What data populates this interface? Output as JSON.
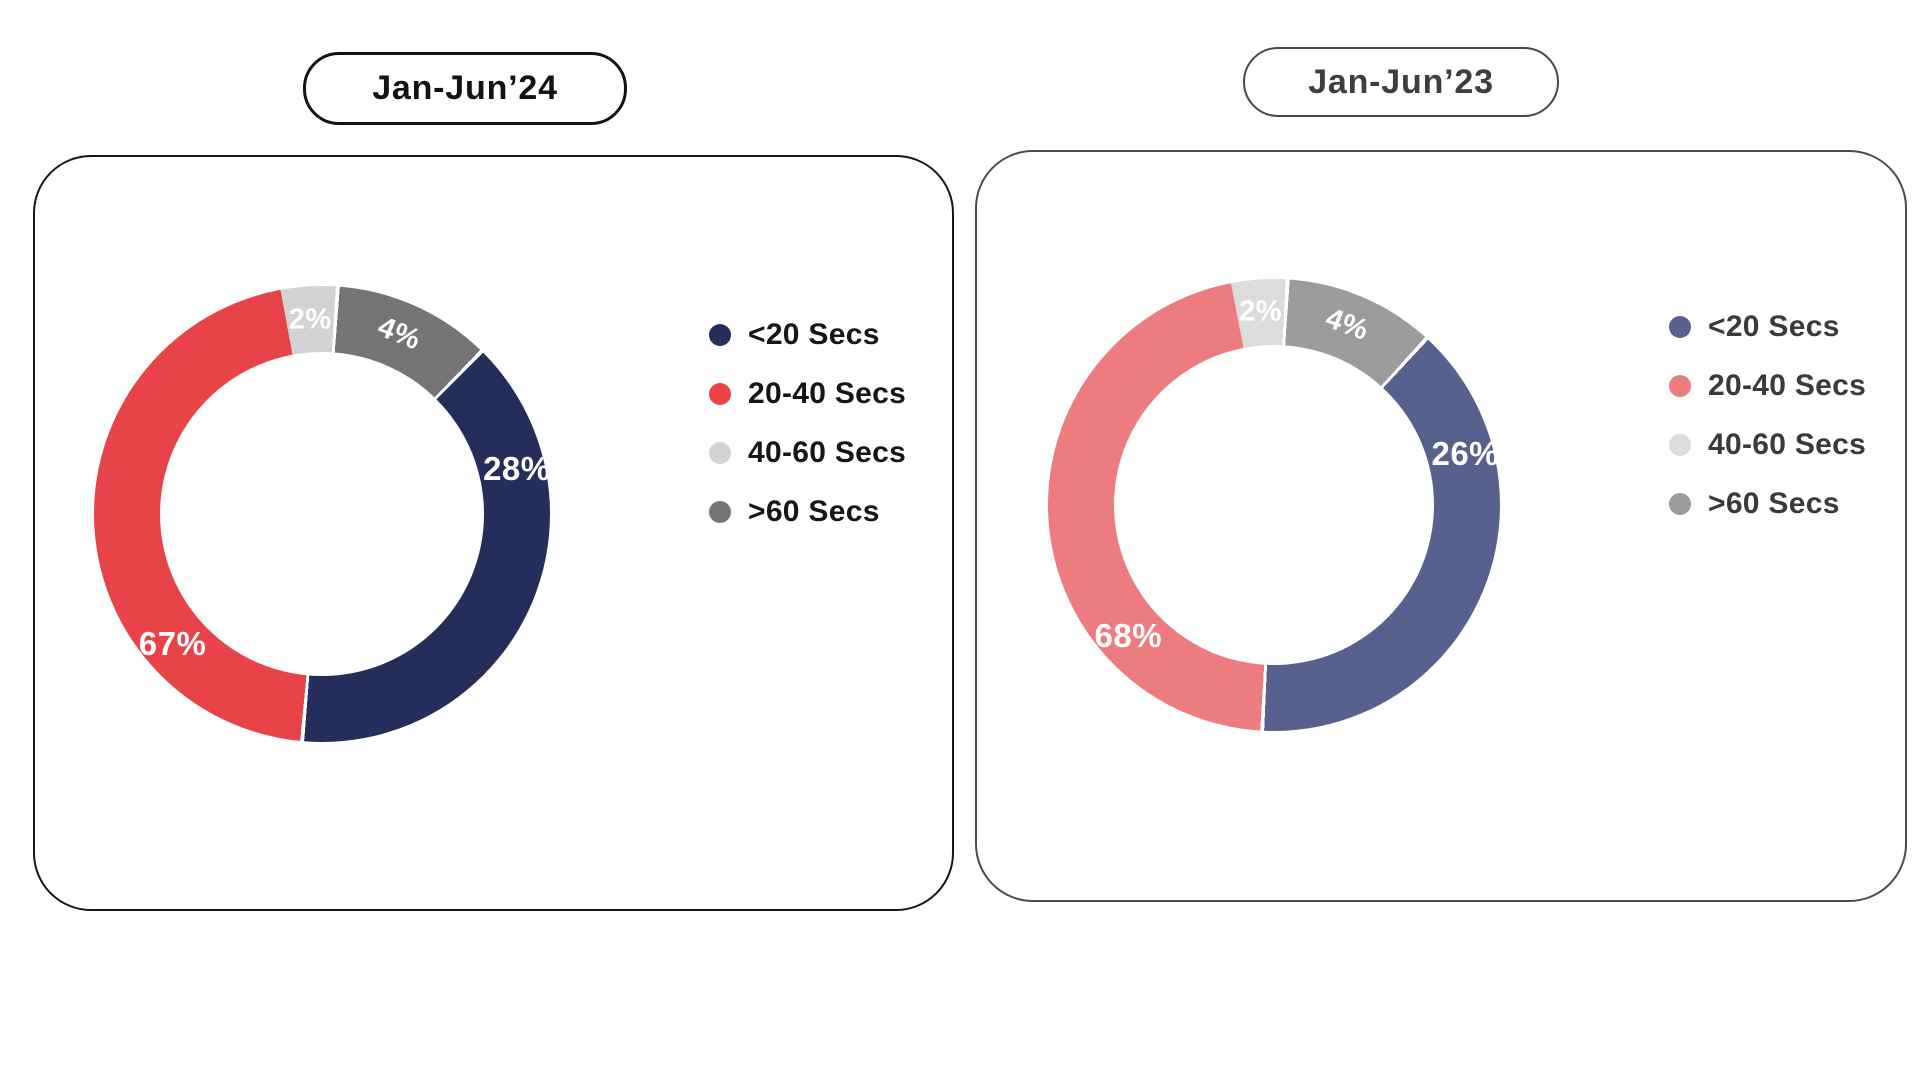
{
  "chart_data": [
    {
      "type": "donut",
      "title": "Jan-Jun’24",
      "legend_position": "right",
      "segments": [
        {
          "label": "<20 Secs",
          "value": 28,
          "display": "28%",
          "color": "#252e5a",
          "arc": [
            45,
            184.5
          ],
          "label_pos": {
            "angle": 77,
            "radius": 200,
            "rotate": 0
          }
        },
        {
          "label": "20-40 Secs",
          "value": 67,
          "display": "67%",
          "color": "#e9434a",
          "arc": [
            185.5,
            349.5
          ],
          "label_pos": {
            "angle": 229,
            "radius": 198,
            "rotate": 0
          }
        },
        {
          "label": "40-60 Secs",
          "value": 2,
          "display": "2%",
          "color": "#d3d3d3",
          "arc": [
            -10.5,
            3.5
          ],
          "label_pos": {
            "angle": -3.5,
            "radius": 194,
            "rotate": 0
          }
        },
        {
          "label": ">60 Secs",
          "value": 4,
          "display": "4%",
          "color": "#757575",
          "arc": [
            4.5,
            44
          ],
          "label_pos": {
            "angle": 23,
            "radius": 196,
            "rotate": 22
          }
        }
      ]
    },
    {
      "type": "donut",
      "title": "Jan-Jun’23",
      "legend_position": "right",
      "segments": [
        {
          "label": "<20 Secs",
          "value": 26,
          "display": "26%",
          "color": "#57618e",
          "arc": [
            43,
            182.5
          ],
          "label_pos": {
            "angle": 75,
            "radius": 198,
            "rotate": 0
          }
        },
        {
          "label": "20-40 Secs",
          "value": 68,
          "display": "68%",
          "color": "#ed7c80",
          "arc": [
            183.5,
            349
          ],
          "label_pos": {
            "angle": 228,
            "radius": 196,
            "rotate": 0
          }
        },
        {
          "label": "40-60 Secs",
          "value": 2,
          "display": "2%",
          "color": "#dcdcdc",
          "arc": [
            -11,
            3
          ],
          "label_pos": {
            "angle": -4,
            "radius": 193,
            "rotate": 0
          }
        },
        {
          "label": ">60 Secs",
          "value": 4,
          "display": "4%",
          "color": "#9c9c9c",
          "arc": [
            4,
            42
          ],
          "label_pos": {
            "angle": 22,
            "radius": 194,
            "rotate": 20
          }
        }
      ]
    }
  ]
}
